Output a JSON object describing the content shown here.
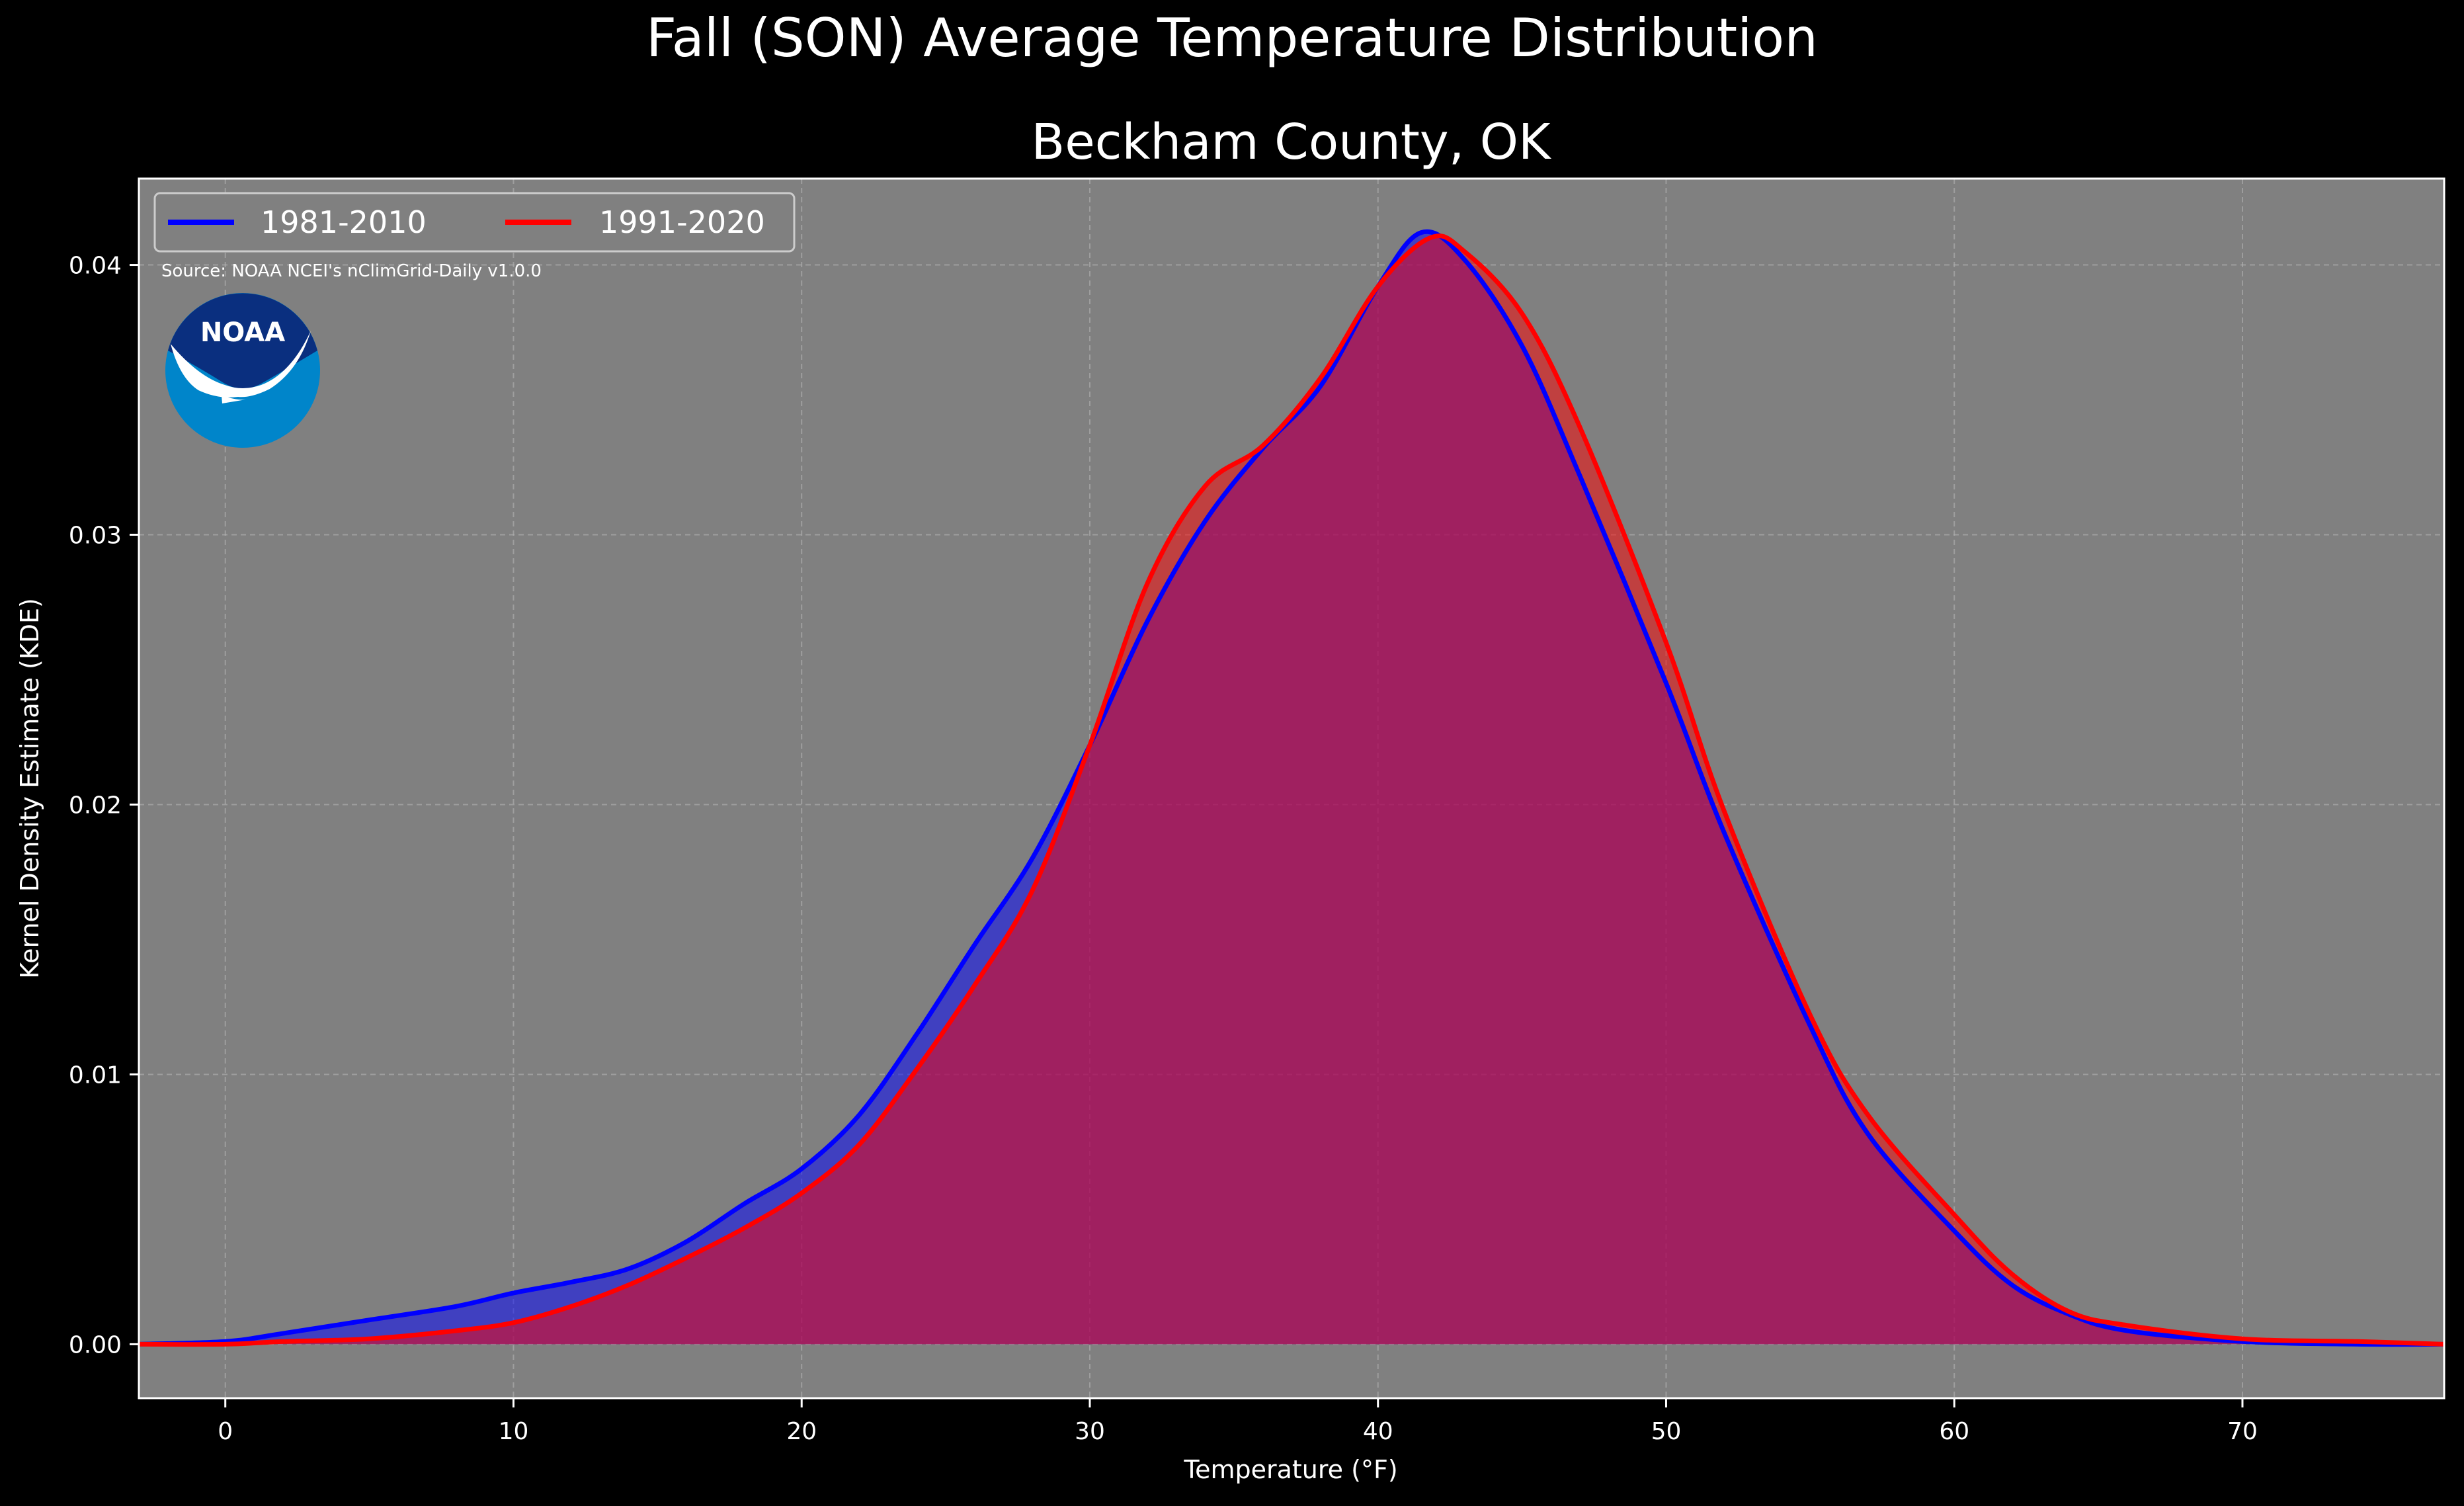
{
  "figure": {
    "suptitle": "Fall (SON) Average Temperature Distribution",
    "source_note": "Source: NOAA NCEI's nClimGrid-Daily v1.0.0",
    "logo_text": "NOAA"
  },
  "colors": {
    "figure_bg": "#000000",
    "plot_bg": "#808080",
    "grid": "#b3b3b3",
    "series_1981_2010": "#0000ff",
    "series_1991_2020": "#ff0000",
    "text": "#ffffff",
    "logo_dark": "#0a2f7f",
    "logo_light": "#0085ca"
  },
  "chart_data": {
    "type": "area",
    "title": "Beckham County, OK",
    "xlabel": "Temperature ($^\\circ$F)",
    "xlabel_display": "Temperature (°F)",
    "ylabel": "Kernel Density Estimate (KDE)",
    "xlim": [
      -3,
      77
    ],
    "ylim": [
      -0.002,
      0.0432
    ],
    "xticks": [
      0,
      10,
      20,
      30,
      40,
      50,
      60,
      70
    ],
    "yticks": [
      0.0,
      0.01,
      0.02,
      0.03,
      0.04
    ],
    "ytick_labels": [
      "0.00",
      "0.01",
      "0.02",
      "0.03",
      "0.04"
    ],
    "grid": true,
    "legend_position": "top-left",
    "series": [
      {
        "name": "1981-2010",
        "color": "#0000ff",
        "fill_alpha": 0.5,
        "x": [
          -3,
          0,
          2,
          5,
          8,
          10,
          12,
          14,
          16,
          18,
          20,
          22,
          24,
          26,
          28,
          30,
          32,
          34,
          36,
          38,
          40,
          41.5,
          43,
          45,
          47,
          50,
          52,
          55,
          57,
          60,
          62,
          64,
          66,
          70,
          74,
          77
        ],
        "y": [
          0.0,
          0.0001,
          0.0004,
          0.0009,
          0.0014,
          0.0019,
          0.0023,
          0.0028,
          0.0038,
          0.0052,
          0.0065,
          0.0085,
          0.0115,
          0.0148,
          0.018,
          0.0222,
          0.0268,
          0.0305,
          0.0332,
          0.0355,
          0.0392,
          0.0412,
          0.0402,
          0.037,
          0.0322,
          0.0245,
          0.019,
          0.0118,
          0.0078,
          0.0042,
          0.0022,
          0.0011,
          0.0005,
          0.0001,
          0.0,
          0.0
        ]
      },
      {
        "name": "1991-2020",
        "color": "#ff0000",
        "fill_alpha": 0.5,
        "x": [
          -3,
          0,
          2,
          5,
          8,
          10,
          12,
          14,
          16,
          18,
          20,
          22,
          24,
          26,
          28,
          30,
          32,
          34,
          36,
          38,
          40,
          41.8,
          43,
          45,
          47,
          50,
          52,
          55,
          57,
          60,
          62,
          64,
          66,
          70,
          74,
          77
        ],
        "y": [
          0.0,
          0.0,
          0.0001,
          0.0002,
          0.0005,
          0.0008,
          0.0014,
          0.0022,
          0.0032,
          0.0043,
          0.0056,
          0.0074,
          0.0102,
          0.0133,
          0.0168,
          0.0222,
          0.0282,
          0.0318,
          0.0333,
          0.0358,
          0.0392,
          0.041,
          0.0405,
          0.0382,
          0.034,
          0.026,
          0.0198,
          0.0122,
          0.0085,
          0.0048,
          0.0026,
          0.0012,
          0.0007,
          0.0002,
          0.0001,
          0.0
        ]
      }
    ]
  }
}
